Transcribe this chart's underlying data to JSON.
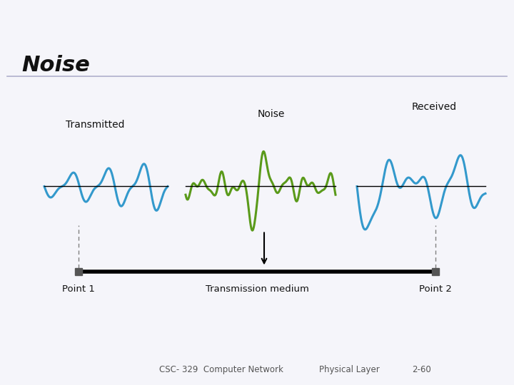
{
  "title": "Noise",
  "slide_bg": "#f5f5fa",
  "content_bg": "#f5f5fa",
  "blue_color": "#3399cc",
  "green_color": "#5a9a1a",
  "dark_color": "#111111",
  "gray_color": "#888888",
  "footer_text1": "CSC- 329  Computer Network",
  "footer_text2": "Physical Layer",
  "footer_text3": "2-60",
  "label_transmitted": "Transmitted",
  "label_noise": "Noise",
  "label_received": "Received",
  "label_point1": "Point 1",
  "label_point2": "Point 2",
  "label_medium": "Transmission medium",
  "header_bar_color": "#c8c8e0",
  "footer_line_color": "#bb1111",
  "separator_color": "#b0b0cc"
}
